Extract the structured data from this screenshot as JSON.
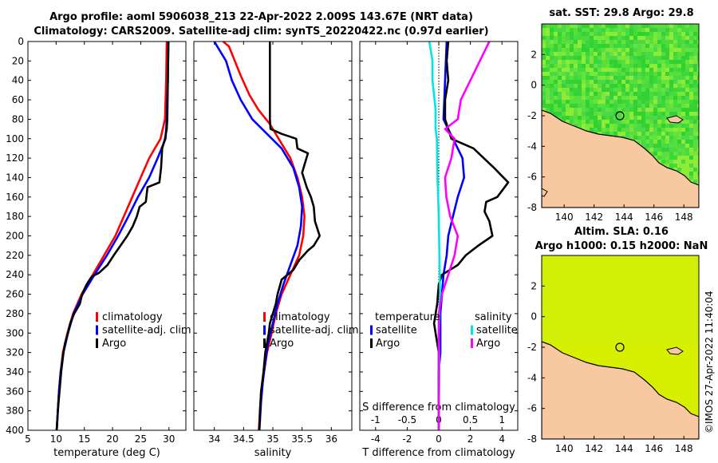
{
  "title_line1": "Argo profile: aoml 5906038_213 22-Apr-2022 2.009S 143.67E (NRT data)",
  "title_line2": "Climatology: CARS2009. Satellite-adj clim: synTS_20220422.nc (0.97d earlier)",
  "map_sst_title": "sat. SST: 29.8 Argo: 29.8",
  "map_sla_title1": "Altim. SLA: 0.16",
  "map_sla_title2": "Argo h1000: 0.15 h2000: NaN",
  "stamp": "©IMOS 27-Apr-2022 11:40:04",
  "colors": {
    "climatology": "#ff0000",
    "satellite": "#0000ff",
    "argo": "#000000",
    "sat_salinity": "#00e5e5",
    "argo_salinity": "#ff00ff",
    "land": "#f8c9a0"
  },
  "chart_data": [
    {
      "type": "line",
      "id": "temperature",
      "xlabel": "temperature (deg C)",
      "xlim": [
        5,
        33
      ],
      "xticks": [
        "5",
        "10",
        "15",
        "20",
        "25",
        "30"
      ],
      "ylim": [
        0,
        400
      ],
      "yticks": [
        "0",
        "20",
        "40",
        "60",
        "80",
        "100",
        "120",
        "140",
        "160",
        "180",
        "200",
        "220",
        "240",
        "260",
        "280",
        "300",
        "320",
        "340",
        "360",
        "380",
        "400"
      ],
      "legend": [
        "climatology",
        "satellite-adj. clim",
        "Argo"
      ],
      "series": [
        {
          "name": "climatology",
          "color": "#ff0000",
          "points": [
            [
              29.6,
              0
            ],
            [
              29.5,
              40
            ],
            [
              29.3,
              80
            ],
            [
              28.5,
              100
            ],
            [
              26.5,
              120
            ],
            [
              25,
              140
            ],
            [
              23.5,
              160
            ],
            [
              22,
              180
            ],
            [
              20.5,
              200
            ],
            [
              18.5,
              220
            ],
            [
              16.5,
              240
            ],
            [
              14.5,
              260
            ],
            [
              13,
              280
            ],
            [
              12,
              300
            ],
            [
              11.2,
              320
            ],
            [
              10.8,
              340
            ],
            [
              10.5,
              360
            ],
            [
              10.3,
              380
            ],
            [
              10.1,
              400
            ]
          ]
        },
        {
          "name": "satellite-adj. clim",
          "color": "#0000ff",
          "points": [
            [
              29.9,
              0
            ],
            [
              29.8,
              40
            ],
            [
              29.6,
              80
            ],
            [
              29.4,
              100
            ],
            [
              28,
              120
            ],
            [
              26.5,
              140
            ],
            [
              24.5,
              160
            ],
            [
              22.8,
              180
            ],
            [
              21,
              200
            ],
            [
              19,
              220
            ],
            [
              16.8,
              240
            ],
            [
              14.7,
              260
            ],
            [
              13.1,
              280
            ],
            [
              12.1,
              300
            ],
            [
              11.3,
              320
            ],
            [
              10.8,
              340
            ],
            [
              10.5,
              360
            ],
            [
              10.3,
              380
            ],
            [
              10.1,
              400
            ]
          ]
        },
        {
          "name": "Argo",
          "color": "#000000",
          "points": [
            [
              29.9,
              0
            ],
            [
              29.8,
              40
            ],
            [
              29.7,
              80
            ],
            [
              29.6,
              90
            ],
            [
              29.3,
              100
            ],
            [
              28.8,
              110
            ],
            [
              28.6,
              130
            ],
            [
              28.3,
              145
            ],
            [
              26.2,
              150
            ],
            [
              25.9,
              165
            ],
            [
              24.8,
              170
            ],
            [
              24.3,
              180
            ],
            [
              23.6,
              190
            ],
            [
              22.6,
              200
            ],
            [
              21.4,
              210
            ],
            [
              20.2,
              220
            ],
            [
              19.1,
              230
            ],
            [
              17.6,
              238
            ],
            [
              16.3,
              242
            ],
            [
              15.4,
              250
            ],
            [
              14.6,
              260
            ],
            [
              14.2,
              270
            ],
            [
              13.2,
              280
            ],
            [
              12.5,
              290
            ],
            [
              12.1,
              300
            ],
            [
              11.6,
              310
            ],
            [
              11.3,
              320
            ],
            [
              10.9,
              340
            ],
            [
              10.6,
              360
            ],
            [
              10.3,
              380
            ],
            [
              10.1,
              400
            ]
          ]
        }
      ]
    },
    {
      "type": "line",
      "id": "salinity",
      "xlabel": "salinity",
      "xlim": [
        33.65,
        36.35
      ],
      "xticks": [
        "34",
        "34.5",
        "35",
        "35.5",
        "36"
      ],
      "ylim": [
        0,
        400
      ],
      "legend": [
        "climatology",
        "satellite-adj. clim",
        "Argo"
      ],
      "series": [
        {
          "name": "climatology",
          "color": "#ff0000",
          "points": [
            [
              34.15,
              0
            ],
            [
              34.25,
              5
            ],
            [
              34.35,
              20
            ],
            [
              34.45,
              35
            ],
            [
              34.6,
              55
            ],
            [
              34.75,
              70
            ],
            [
              34.95,
              85
            ],
            [
              35.1,
              100
            ],
            [
              35.3,
              120
            ],
            [
              35.42,
              140
            ],
            [
              35.5,
              160
            ],
            [
              35.54,
              180
            ],
            [
              35.52,
              200
            ],
            [
              35.45,
              220
            ],
            [
              35.3,
              240
            ],
            [
              35.15,
              260
            ],
            [
              35.05,
              280
            ],
            [
              34.98,
              300
            ],
            [
              34.9,
              320
            ],
            [
              34.85,
              340
            ],
            [
              34.8,
              360
            ],
            [
              34.78,
              380
            ],
            [
              34.76,
              400
            ]
          ]
        },
        {
          "name": "satellite-adj. clim",
          "color": "#0000ff",
          "points": [
            [
              34.0,
              0
            ],
            [
              34.05,
              5
            ],
            [
              34.2,
              20
            ],
            [
              34.3,
              40
            ],
            [
              34.45,
              60
            ],
            [
              34.65,
              80
            ],
            [
              34.9,
              95
            ],
            [
              35.15,
              110
            ],
            [
              35.35,
              130
            ],
            [
              35.45,
              150
            ],
            [
              35.5,
              170
            ],
            [
              35.48,
              190
            ],
            [
              35.42,
              210
            ],
            [
              35.3,
              230
            ],
            [
              35.18,
              250
            ],
            [
              35.08,
              270
            ],
            [
              35.0,
              290
            ],
            [
              34.92,
              310
            ],
            [
              34.87,
              330
            ],
            [
              34.83,
              350
            ],
            [
              34.8,
              370
            ],
            [
              34.78,
              390
            ],
            [
              34.77,
              400
            ]
          ]
        },
        {
          "name": "Argo",
          "color": "#000000",
          "points": [
            [
              34.95,
              0
            ],
            [
              34.95,
              40
            ],
            [
              34.95,
              80
            ],
            [
              34.96,
              90
            ],
            [
              35.15,
              95
            ],
            [
              35.4,
              100
            ],
            [
              35.42,
              110
            ],
            [
              35.6,
              115
            ],
            [
              35.55,
              125
            ],
            [
              35.5,
              135
            ],
            [
              35.58,
              150
            ],
            [
              35.65,
              160
            ],
            [
              35.7,
              170
            ],
            [
              35.72,
              185
            ],
            [
              35.8,
              200
            ],
            [
              35.7,
              210
            ],
            [
              35.6,
              215
            ],
            [
              35.45,
              225
            ],
            [
              35.35,
              235
            ],
            [
              35.15,
              245
            ],
            [
              35.08,
              260
            ],
            [
              35.05,
              270
            ],
            [
              35.0,
              280
            ],
            [
              34.95,
              290
            ],
            [
              34.93,
              300
            ],
            [
              34.9,
              310
            ],
            [
              34.87,
              320
            ],
            [
              34.84,
              340
            ],
            [
              34.8,
              360
            ],
            [
              34.78,
              380
            ],
            [
              34.77,
              400
            ]
          ]
        }
      ]
    },
    {
      "type": "line",
      "id": "difference",
      "xlabel": "T difference from climatology",
      "xlabel_top": "S difference from climatology",
      "xlim": [
        -5,
        5
      ],
      "xticks": [
        "-4",
        "-2",
        "0",
        "2",
        "4"
      ],
      "xlim_top": [
        -1.25,
        1.25
      ],
      "xticks_top": [
        "-1",
        "-0.5",
        "0",
        "0.5",
        "1"
      ],
      "ylim": [
        0,
        400
      ],
      "legend_temperature_title": "temperature",
      "legend_salinity_title": "salinity",
      "legend_temperature": [
        "satellite",
        "Argo"
      ],
      "legend_salinity": [
        "satellite",
        "Argo"
      ],
      "series": [
        {
          "name": "T satellite",
          "color": "#0000ff",
          "axis": "T",
          "points": [
            [
              0.5,
              0
            ],
            [
              0.4,
              40
            ],
            [
              0.3,
              80
            ],
            [
              0.9,
              100
            ],
            [
              1.5,
              120
            ],
            [
              1.6,
              140
            ],
            [
              1.2,
              160
            ],
            [
              0.9,
              180
            ],
            [
              0.6,
              200
            ],
            [
              0.5,
              220
            ],
            [
              0.3,
              240
            ],
            [
              0.2,
              260
            ],
            [
              0.1,
              280
            ],
            [
              0.1,
              300
            ],
            [
              0.1,
              320
            ],
            [
              0.0,
              340
            ],
            [
              0.0,
              360
            ],
            [
              0.0,
              380
            ],
            [
              0.0,
              400
            ]
          ]
        },
        {
          "name": "T Argo",
          "color": "#000000",
          "axis": "T",
          "points": [
            [
              0.6,
              0
            ],
            [
              0.5,
              20
            ],
            [
              0.6,
              40
            ],
            [
              0.4,
              60
            ],
            [
              0.4,
              80
            ],
            [
              0.8,
              100
            ],
            [
              2.2,
              110
            ],
            [
              3.5,
              130
            ],
            [
              4.4,
              145
            ],
            [
              3.7,
              160
            ],
            [
              3.0,
              165
            ],
            [
              2.9,
              175
            ],
            [
              3.2,
              185
            ],
            [
              3.4,
              200
            ],
            [
              2.5,
              210
            ],
            [
              1.7,
              220
            ],
            [
              1.2,
              230
            ],
            [
              0.2,
              240
            ],
            [
              0.0,
              250
            ],
            [
              -0.1,
              270
            ],
            [
              -0.3,
              290
            ],
            [
              -0.2,
              300
            ],
            [
              -0.1,
              310
            ],
            [
              0.0,
              320
            ],
            [
              0.0,
              340
            ],
            [
              0.0,
              360
            ],
            [
              0.0,
              380
            ],
            [
              0.0,
              400
            ]
          ]
        },
        {
          "name": "S satellite",
          "color": "#00e5e5",
          "axis": "S",
          "points": [
            [
              -0.15,
              0
            ],
            [
              -0.1,
              20
            ],
            [
              -0.1,
              40
            ],
            [
              -0.05,
              70
            ],
            [
              -0.05,
              90
            ],
            [
              -0.03,
              100
            ],
            [
              -0.02,
              140
            ],
            [
              0.0,
              180
            ],
            [
              0.01,
              220
            ],
            [
              0.02,
              260
            ],
            [
              0.0,
              300
            ],
            [
              0.01,
              340
            ],
            [
              0.0,
              380
            ],
            [
              0.0,
              400
            ]
          ]
        },
        {
          "name": "S Argo",
          "color": "#ff00ff",
          "axis": "S",
          "points": [
            [
              0.8,
              0
            ],
            [
              0.65,
              20
            ],
            [
              0.5,
              40
            ],
            [
              0.35,
              60
            ],
            [
              0.3,
              80
            ],
            [
              0.1,
              90
            ],
            [
              0.25,
              100
            ],
            [
              0.2,
              120
            ],
            [
              0.1,
              140
            ],
            [
              0.12,
              160
            ],
            [
              0.18,
              180
            ],
            [
              0.3,
              200
            ],
            [
              0.25,
              220
            ],
            [
              0.15,
              240
            ],
            [
              0.05,
              260
            ],
            [
              0.0,
              280
            ],
            [
              0.0,
              300
            ],
            [
              0.0,
              340
            ],
            [
              0.0,
              380
            ],
            [
              0.0,
              400
            ]
          ]
        }
      ]
    },
    {
      "type": "heatmap",
      "id": "sst_map",
      "title": "sat. SST: 29.8 Argo: 29.8",
      "xlim": [
        138.5,
        149
      ],
      "xticks": [
        "140",
        "142",
        "144",
        "146",
        "148"
      ],
      "ylim": [
        -8,
        4
      ],
      "yticks": [
        "2",
        "0",
        "-2",
        "-4",
        "-6",
        "-8"
      ],
      "marker": [
        143.67,
        -2.009
      ]
    },
    {
      "type": "heatmap",
      "id": "sla_map",
      "title": "Altim. SLA: 0.16",
      "xlim": [
        138.5,
        149
      ],
      "xticks": [
        "140",
        "142",
        "144",
        "146",
        "148"
      ],
      "ylim": [
        -8,
        4
      ],
      "yticks": [
        "2",
        "0",
        "-2",
        "-4",
        "-6",
        "-8"
      ],
      "marker": [
        143.67,
        -2.009
      ]
    }
  ]
}
